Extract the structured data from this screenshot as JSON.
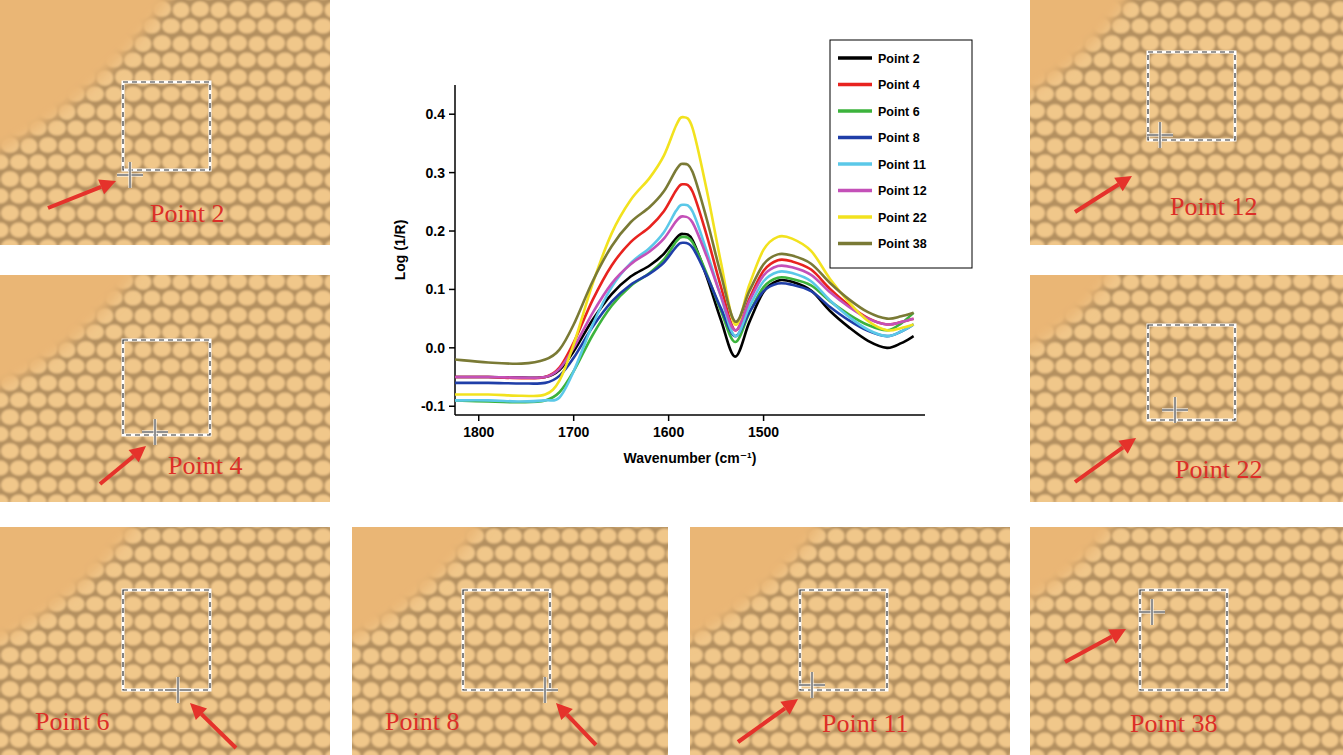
{
  "chart_data": {
    "type": "line",
    "x_label": "Wavenumber (cm⁻¹)",
    "y_label": "Log (1/R)",
    "x": [
      1825,
      1790,
      1755,
      1730,
      1715,
      1700,
      1680,
      1660,
      1640,
      1620,
      1605,
      1592,
      1585,
      1575,
      1560,
      1545,
      1530,
      1515,
      1500,
      1485,
      1470,
      1450,
      1430,
      1410,
      1390,
      1370,
      1355,
      1342
    ],
    "xlim": [
      1825,
      1330
    ],
    "xticks": [
      1800,
      1700,
      1600,
      1500
    ],
    "ylim": [
      -0.115,
      0.45
    ],
    "yticks": [
      -0.1,
      {
        "value": 0,
        "label": "0.0"
      },
      0.1,
      0.2,
      0.3,
      0.4
    ],
    "legend": "top-right",
    "series": [
      {
        "name": "Point 2",
        "color": "#000000",
        "values": [
          -0.05,
          -0.05,
          -0.051,
          -0.05,
          -0.038,
          -0.006,
          0.048,
          0.092,
          0.122,
          0.141,
          0.161,
          0.188,
          0.195,
          0.185,
          0.122,
          0.048,
          -0.015,
          0.044,
          0.096,
          0.115,
          0.113,
          0.098,
          0.063,
          0.035,
          0.012,
          0.0,
          0.008,
          0.02
        ]
      },
      {
        "name": "Point 4",
        "color": "#e8231f",
        "values": [
          -0.05,
          -0.05,
          -0.052,
          -0.05,
          -0.034,
          0.009,
          0.082,
          0.141,
          0.181,
          0.207,
          0.234,
          0.27,
          0.28,
          0.268,
          0.193,
          0.105,
          0.03,
          0.084,
          0.132,
          0.15,
          0.148,
          0.134,
          0.101,
          0.073,
          0.051,
          0.04,
          0.044,
          0.05
        ]
      },
      {
        "name": "Point 6",
        "color": "#3cb33c",
        "values": [
          -0.09,
          -0.092,
          -0.093,
          -0.09,
          -0.076,
          -0.04,
          0.022,
          0.072,
          0.106,
          0.128,
          0.151,
          0.182,
          0.19,
          0.181,
          0.127,
          0.064,
          0.01,
          0.06,
          0.104,
          0.12,
          0.118,
          0.107,
          0.08,
          0.057,
          0.039,
          0.03,
          0.042,
          0.06
        ]
      },
      {
        "name": "Point 8",
        "color": "#1f3ea8",
        "values": [
          -0.06,
          -0.06,
          -0.061,
          -0.06,
          -0.048,
          -0.017,
          0.036,
          0.079,
          0.108,
          0.127,
          0.146,
          0.173,
          0.18,
          0.172,
          0.124,
          0.068,
          0.02,
          0.061,
          0.097,
          0.11,
          0.108,
          0.097,
          0.07,
          0.047,
          0.029,
          0.02,
          0.028,
          0.04
        ]
      },
      {
        "name": "Point 11",
        "color": "#5bc8e8",
        "values": [
          -0.09,
          -0.09,
          -0.092,
          -0.09,
          -0.085,
          -0.04,
          0.04,
          0.104,
          0.145,
          0.171,
          0.198,
          0.235,
          0.245,
          0.234,
          0.166,
          0.088,
          0.02,
          0.07,
          0.114,
          0.13,
          0.128,
          0.114,
          0.081,
          0.053,
          0.031,
          0.02,
          0.028,
          0.04
        ]
      },
      {
        "name": "Point 12",
        "color": "#c450b8",
        "values": [
          -0.05,
          -0.05,
          -0.051,
          -0.05,
          -0.036,
          0.0,
          0.06,
          0.11,
          0.143,
          0.165,
          0.187,
          0.217,
          0.225,
          0.215,
          0.157,
          0.089,
          0.03,
          0.08,
          0.124,
          0.14,
          0.138,
          0.125,
          0.095,
          0.07,
          0.05,
          0.04,
          0.044,
          0.05
        ]
      },
      {
        "name": "Point 22",
        "color": "#f2e21e",
        "values": [
          -0.08,
          -0.08,
          -0.082,
          -0.08,
          -0.056,
          0.006,
          0.11,
          0.196,
          0.253,
          0.291,
          0.329,
          0.381,
          0.395,
          0.377,
          0.271,
          0.147,
          0.04,
          0.108,
          0.168,
          0.19,
          0.187,
          0.166,
          0.118,
          0.078,
          0.046,
          0.03,
          0.034,
          0.04
        ]
      },
      {
        "name": "Point 38",
        "color": "#7a7a35",
        "values": [
          -0.02,
          -0.025,
          -0.027,
          -0.02,
          -0.003,
          0.04,
          0.114,
          0.174,
          0.215,
          0.241,
          0.268,
          0.305,
          0.315,
          0.302,
          0.221,
          0.126,
          0.045,
          0.097,
          0.143,
          0.16,
          0.158,
          0.144,
          0.111,
          0.083,
          0.061,
          0.05,
          0.054,
          0.06
        ]
      }
    ]
  },
  "panels": [
    {
      "label": "Point 2"
    },
    {
      "label": "Point 4"
    },
    {
      "label": "Point 6"
    },
    {
      "label": "Point 8"
    },
    {
      "label": "Point 11"
    },
    {
      "label": "Point 12"
    },
    {
      "label": "Point 22"
    },
    {
      "label": "Point 38"
    }
  ]
}
